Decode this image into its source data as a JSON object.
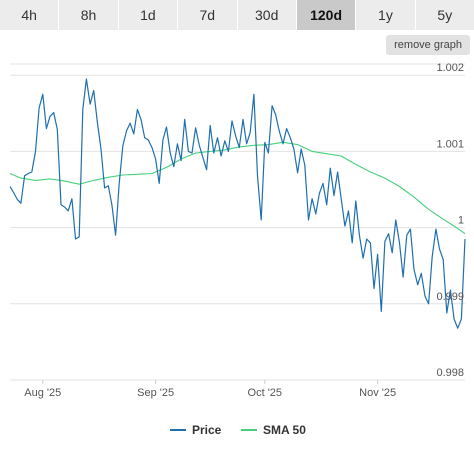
{
  "tabs": [
    {
      "label": "4h",
      "active": false
    },
    {
      "label": "8h",
      "active": false
    },
    {
      "label": "1d",
      "active": false
    },
    {
      "label": "7d",
      "active": false
    },
    {
      "label": "30d",
      "active": false
    },
    {
      "label": "120d",
      "active": true
    },
    {
      "label": "1y",
      "active": false
    },
    {
      "label": "5y",
      "active": false
    }
  ],
  "remove_graph_label": "remove graph",
  "colors": {
    "price": "#1f6fb0",
    "sma": "#47d07a",
    "grid": "#e3e3e3"
  },
  "chart_data": {
    "type": "line",
    "title": "",
    "xlabel": "",
    "ylabel": "",
    "ylim": [
      0.998,
      1.0022
    ],
    "yticks": [
      {
        "value": 0.998,
        "label": "0.998"
      },
      {
        "value": 0.999,
        "label": "0.999"
      },
      {
        "value": 1.0,
        "label": "1"
      },
      {
        "value": 1.001,
        "label": "1.001"
      },
      {
        "value": 1.002,
        "label": "1.002"
      }
    ],
    "xlim": [
      "2025-07-23",
      "2025-11-25"
    ],
    "xticks": [
      {
        "date": "2025-08-01",
        "label": "Aug '25"
      },
      {
        "date": "2025-09-01",
        "label": "Sep '25"
      },
      {
        "date": "2025-10-01",
        "label": "Oct '25"
      },
      {
        "date": "2025-11-01",
        "label": "Nov '25"
      }
    ],
    "legend_position": "bottom-center",
    "series": [
      {
        "name": "Price",
        "values": [
          [
            "2025-07-23",
            1.00054
          ],
          [
            "2025-07-24",
            1.00046
          ],
          [
            "2025-07-25",
            1.00037
          ],
          [
            "2025-07-26",
            1.00032
          ],
          [
            "2025-07-27",
            1.00068
          ],
          [
            "2025-07-28",
            1.00071
          ],
          [
            "2025-07-29",
            1.00073
          ],
          [
            "2025-07-30",
            1.001
          ],
          [
            "2025-07-31",
            1.00157
          ],
          [
            "2025-08-01",
            1.00175
          ],
          [
            "2025-08-02",
            1.0013
          ],
          [
            "2025-08-03",
            1.00146
          ],
          [
            "2025-08-04",
            1.00151
          ],
          [
            "2025-08-05",
            1.00129
          ],
          [
            "2025-08-06",
            1.0003
          ],
          [
            "2025-08-07",
            1.00027
          ],
          [
            "2025-08-08",
            1.00022
          ],
          [
            "2025-08-09",
            1.00038
          ],
          [
            "2025-08-10",
            0.99985
          ],
          [
            "2025-08-11",
            0.99988
          ],
          [
            "2025-08-12",
            1.00155
          ],
          [
            "2025-08-13",
            1.00195
          ],
          [
            "2025-08-14",
            1.00162
          ],
          [
            "2025-08-15",
            1.0018
          ],
          [
            "2025-08-16",
            1.00138
          ],
          [
            "2025-08-17",
            1.00103
          ],
          [
            "2025-08-18",
            1.00052
          ],
          [
            "2025-08-19",
            1.00055
          ],
          [
            "2025-08-20",
            1.0003
          ],
          [
            "2025-08-21",
            0.9999
          ],
          [
            "2025-08-22",
            1.00058
          ],
          [
            "2025-08-23",
            1.00107
          ],
          [
            "2025-08-24",
            1.00127
          ],
          [
            "2025-08-25",
            1.00137
          ],
          [
            "2025-08-26",
            1.00123
          ],
          [
            "2025-08-27",
            1.00155
          ],
          [
            "2025-08-28",
            1.00142
          ],
          [
            "2025-08-29",
            1.00118
          ],
          [
            "2025-08-30",
            1.00115
          ],
          [
            "2025-08-31",
            1.00105
          ],
          [
            "2025-09-01",
            1.0009
          ],
          [
            "2025-09-02",
            1.00058
          ],
          [
            "2025-09-03",
            1.00115
          ],
          [
            "2025-09-04",
            1.00132
          ],
          [
            "2025-09-05",
            1.00098
          ],
          [
            "2025-09-06",
            1.0008
          ],
          [
            "2025-09-07",
            1.0011
          ],
          [
            "2025-09-08",
            1.00088
          ],
          [
            "2025-09-09",
            1.00142
          ],
          [
            "2025-09-10",
            1.001
          ],
          [
            "2025-09-11",
            1.00098
          ],
          [
            "2025-09-12",
            1.00131
          ],
          [
            "2025-09-13",
            1.00108
          ],
          [
            "2025-09-14",
            1.00092
          ],
          [
            "2025-09-15",
            1.00076
          ],
          [
            "2025-09-16",
            1.00134
          ],
          [
            "2025-09-17",
            1.00098
          ],
          [
            "2025-09-18",
            1.00118
          ],
          [
            "2025-09-19",
            1.00094
          ],
          [
            "2025-09-20",
            1.00114
          ],
          [
            "2025-09-21",
            1.001
          ],
          [
            "2025-09-22",
            1.0014
          ],
          [
            "2025-09-23",
            1.0012
          ],
          [
            "2025-09-24",
            1.00105
          ],
          [
            "2025-09-25",
            1.00142
          ],
          [
            "2025-09-26",
            1.0011
          ],
          [
            "2025-09-27",
            1.00125
          ],
          [
            "2025-09-28",
            1.00175
          ],
          [
            "2025-09-29",
            1.00068
          ],
          [
            "2025-09-30",
            1.0001
          ],
          [
            "2025-10-01",
            1.00112
          ],
          [
            "2025-10-02",
            1.00098
          ],
          [
            "2025-10-03",
            1.0016
          ],
          [
            "2025-10-04",
            1.00148
          ],
          [
            "2025-10-05",
            1.00126
          ],
          [
            "2025-10-06",
            1.0011
          ],
          [
            "2025-10-07",
            1.0013
          ],
          [
            "2025-10-08",
            1.00118
          ],
          [
            "2025-10-09",
            1.00103
          ],
          [
            "2025-10-10",
            1.00072
          ],
          [
            "2025-10-11",
            1.00103
          ],
          [
            "2025-10-12",
            1.00082
          ],
          [
            "2025-10-13",
            1.0001
          ],
          [
            "2025-10-14",
            1.00038
          ],
          [
            "2025-10-15",
            1.00018
          ],
          [
            "2025-10-16",
            1.00045
          ],
          [
            "2025-10-17",
            1.00058
          ],
          [
            "2025-10-18",
            1.0003
          ],
          [
            "2025-10-19",
            1.00078
          ],
          [
            "2025-10-20",
            1.00042
          ],
          [
            "2025-10-21",
            1.00073
          ],
          [
            "2025-10-22",
            1.00038
          ],
          [
            "2025-10-23",
            1.00002
          ],
          [
            "2025-10-24",
            1.00022
          ],
          [
            "2025-10-25",
            0.9998
          ],
          [
            "2025-10-26",
            1.00035
          ],
          [
            "2025-10-27",
            0.9999
          ],
          [
            "2025-10-28",
            0.9996
          ],
          [
            "2025-10-29",
            0.99985
          ],
          [
            "2025-10-30",
            0.9998
          ],
          [
            "2025-10-31",
            0.9992
          ],
          [
            "2025-11-01",
            0.99965
          ],
          [
            "2025-11-02",
            0.9989
          ],
          [
            "2025-11-03",
            0.99982
          ],
          [
            "2025-11-04",
            0.99992
          ],
          [
            "2025-11-05",
            0.99967
          ],
          [
            "2025-11-06",
            1.0001
          ],
          [
            "2025-11-07",
            0.9998
          ],
          [
            "2025-11-08",
            0.99935
          ],
          [
            "2025-11-09",
            0.9999
          ],
          [
            "2025-11-10",
            0.99998
          ],
          [
            "2025-11-11",
            0.99945
          ],
          [
            "2025-11-12",
            0.99925
          ],
          [
            "2025-11-13",
            0.9994
          ],
          [
            "2025-11-14",
            0.9991
          ],
          [
            "2025-11-15",
            0.999
          ],
          [
            "2025-11-16",
            0.99962
          ],
          [
            "2025-11-17",
            0.99998
          ],
          [
            "2025-11-18",
            0.99972
          ],
          [
            "2025-11-19",
            0.99958
          ],
          [
            "2025-11-20",
            0.99888
          ],
          [
            "2025-11-21",
            0.99918
          ],
          [
            "2025-11-22",
            0.9988
          ],
          [
            "2025-11-23",
            0.99868
          ],
          [
            "2025-11-24",
            0.9988
          ],
          [
            "2025-11-25",
            0.99985
          ]
        ]
      },
      {
        "name": "SMA 50",
        "values": [
          [
            "2025-07-23",
            1.00071
          ],
          [
            "2025-07-26",
            1.00065
          ],
          [
            "2025-07-30",
            1.00062
          ],
          [
            "2025-08-03",
            1.00064
          ],
          [
            "2025-08-07",
            1.00061
          ],
          [
            "2025-08-11",
            1.00057
          ],
          [
            "2025-08-15",
            1.00062
          ],
          [
            "2025-08-19",
            1.00066
          ],
          [
            "2025-08-23",
            1.00069
          ],
          [
            "2025-08-27",
            1.0007
          ],
          [
            "2025-08-31",
            1.00071
          ],
          [
            "2025-09-04",
            1.00079
          ],
          [
            "2025-09-08",
            1.0009
          ],
          [
            "2025-09-12",
            1.00098
          ],
          [
            "2025-09-16",
            1.001
          ],
          [
            "2025-09-20",
            1.00102
          ],
          [
            "2025-09-24",
            1.00106
          ],
          [
            "2025-09-28",
            1.00108
          ],
          [
            "2025-10-02",
            1.00109
          ],
          [
            "2025-10-06",
            1.00112
          ],
          [
            "2025-10-10",
            1.00109
          ],
          [
            "2025-10-14",
            1.001
          ],
          [
            "2025-10-18",
            1.00097
          ],
          [
            "2025-10-22",
            1.00094
          ],
          [
            "2025-10-26",
            1.00083
          ],
          [
            "2025-10-30",
            1.00073
          ],
          [
            "2025-11-03",
            1.00065
          ],
          [
            "2025-11-07",
            1.00054
          ],
          [
            "2025-11-11",
            1.0004
          ],
          [
            "2025-11-15",
            1.00024
          ],
          [
            "2025-11-19",
            1.00011
          ],
          [
            "2025-11-22",
            1.00002
          ],
          [
            "2025-11-25",
            0.99992
          ]
        ]
      }
    ]
  }
}
